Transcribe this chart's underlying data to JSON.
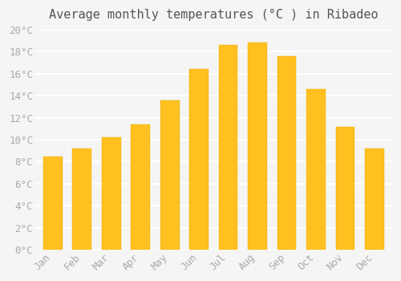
{
  "title": "Average monthly temperatures (°C ) in Ribadeo",
  "months": [
    "Jan",
    "Feb",
    "Mar",
    "Apr",
    "May",
    "Jun",
    "Jul",
    "Aug",
    "Sep",
    "Oct",
    "Nov",
    "Dec"
  ],
  "temperatures": [
    8.5,
    9.2,
    10.2,
    11.4,
    13.6,
    16.4,
    18.6,
    18.8,
    17.6,
    14.6,
    11.2,
    9.2
  ],
  "bar_color_top": "#FFC020",
  "bar_color_bottom": "#FFD060",
  "ylim": [
    0,
    20
  ],
  "yticks": [
    0,
    2,
    4,
    6,
    8,
    10,
    12,
    14,
    16,
    18,
    20
  ],
  "background_color": "#F5F5F5",
  "grid_color": "#FFFFFF",
  "title_fontsize": 11,
  "tick_fontsize": 9,
  "tick_font_color": "#AAAAAA"
}
